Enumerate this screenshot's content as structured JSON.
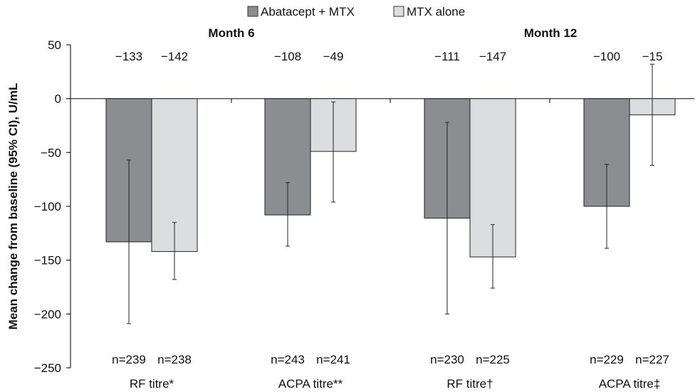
{
  "chart_data": {
    "type": "bar",
    "ylabel": "Mean change from baseline (95% CI), U/mL",
    "ylim": [
      -250,
      50
    ],
    "yticks": [
      50,
      0,
      -50,
      -100,
      -150,
      -200,
      -250
    ],
    "yticks_text": [
      "50",
      "0",
      "−50",
      "−100",
      "−150",
      "−200",
      "−250"
    ],
    "legend_position": "top-center",
    "periods": [
      "Month 6",
      "Month 12"
    ],
    "categories": [
      "RF titre*",
      "ACPA titre**",
      "RF titre†",
      "ACPA titre‡"
    ],
    "series": [
      {
        "name": "Abatacept + MTX",
        "color": "#8c8d90",
        "values": [
          -133,
          -108,
          -111,
          -100
        ],
        "ci_low": [
          -209,
          -137,
          -200,
          -139
        ],
        "ci_high": [
          -57,
          -78,
          -22,
          -61
        ],
        "value_labels": [
          "−133",
          "−108",
          "−111",
          "−100"
        ],
        "n_labels": [
          "n=239",
          "n=243",
          "n=230",
          "n=229"
        ]
      },
      {
        "name": "MTX alone",
        "color": "#dcdddf",
        "values": [
          -142,
          -49,
          -147,
          -15
        ],
        "ci_low": [
          -168,
          -96,
          -176,
          -62
        ],
        "ci_high": [
          -115,
          -3,
          -117,
          32
        ],
        "value_labels": [
          "−142",
          "−49",
          "−147",
          "−15"
        ],
        "n_labels": [
          "n=238",
          "n=241",
          "n=225",
          "n=227"
        ]
      }
    ]
  }
}
